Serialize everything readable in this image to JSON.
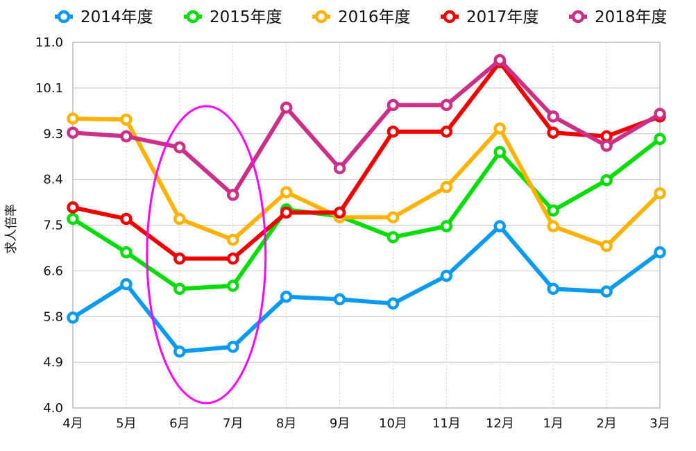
{
  "chart_data": {
    "type": "line",
    "categories": [
      "4月",
      "5月",
      "6月",
      "7月",
      "8月",
      "9月",
      "10月",
      "11月",
      "12月",
      "1月",
      "2月",
      "3月"
    ],
    "ylabel": "求人倍率",
    "ylim": [
      4.0,
      11.0
    ],
    "y_ticks": [
      "4.0",
      "4.9",
      "5.8",
      "6.6",
      "7.5",
      "8.4",
      "9.3",
      "10.1",
      "11.0"
    ],
    "grid": true,
    "legend_position": "top",
    "highlight": {
      "shape": "ellipse",
      "color": "#ff00ff",
      "covers": [
        "6月",
        "7月"
      ]
    },
    "series": [
      {
        "name": "2014年度",
        "color": "#0a9bf0",
        "values": [
          5.73,
          6.37,
          5.08,
          5.17,
          6.13,
          6.08,
          6.0,
          6.53,
          7.48,
          6.28,
          6.23,
          6.98
        ]
      },
      {
        "name": "2015年度",
        "color": "#00dd00",
        "values": [
          7.62,
          6.98,
          6.28,
          6.34,
          7.8,
          7.67,
          7.27,
          7.48,
          8.9,
          7.78,
          8.36,
          9.15
        ]
      },
      {
        "name": "2016年度",
        "color": "#ffb300",
        "values": [
          9.54,
          9.52,
          7.62,
          7.22,
          8.13,
          7.65,
          7.65,
          8.23,
          9.35,
          7.48,
          7.1,
          8.11
        ]
      },
      {
        "name": "2017年度",
        "color": "#ee0000",
        "values": [
          7.84,
          7.62,
          6.86,
          6.86,
          7.74,
          7.74,
          9.29,
          9.29,
          10.62,
          9.27,
          9.2,
          9.58
        ]
      },
      {
        "name": "2018年度",
        "color": "#cc2f88",
        "values": [
          9.27,
          9.2,
          8.99,
          8.08,
          9.75,
          8.59,
          9.8,
          9.8,
          10.66,
          9.58,
          9.02,
          9.63
        ]
      }
    ]
  }
}
